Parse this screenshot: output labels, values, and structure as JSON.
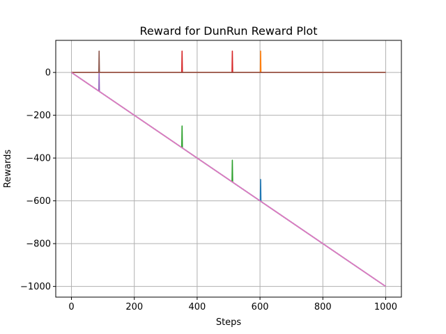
{
  "chart_data": {
    "type": "line",
    "title": "Reward for DunRun Reward Plot",
    "xlabel": "Steps",
    "ylabel": "Rewards",
    "xlim": [
      -50,
      1050
    ],
    "ylim": [
      -1050,
      150
    ],
    "xticks": [
      0,
      200,
      400,
      600,
      800,
      1000
    ],
    "yticks": [
      0,
      -200,
      -400,
      -600,
      -800,
      -1000
    ],
    "xtick_labels": [
      "0",
      "200",
      "400",
      "600",
      "800",
      "1000"
    ],
    "ytick_labels": [
      "0",
      "−200",
      "−400",
      "−600",
      "−800",
      "−1000"
    ],
    "grid": true,
    "legend": "none",
    "series": [
      {
        "color": "#1f77b4",
        "x": [
          0,
          601,
          602,
          603,
          1000
        ],
        "y": [
          0,
          -601,
          -500,
          -603,
          -1000
        ]
      },
      {
        "color": "#ff7f0e",
        "x": [
          0,
          601,
          602,
          603,
          1000
        ],
        "y": [
          0,
          0,
          100,
          0,
          0
        ]
      },
      {
        "color": "#2ca02c",
        "x": [
          0,
          351,
          352,
          353,
          511,
          512,
          513,
          1000
        ],
        "y": [
          0,
          -351,
          -250,
          -353,
          -511,
          -410,
          -513,
          -1000
        ]
      },
      {
        "color": "#d62728",
        "x": [
          0,
          351,
          352,
          353,
          511,
          512,
          513,
          1000
        ],
        "y": [
          0,
          0,
          100,
          0,
          0,
          100,
          0,
          0
        ]
      },
      {
        "color": "#9467bd",
        "x": [
          0,
          87,
          88,
          89,
          1000
        ],
        "y": [
          0,
          -87,
          0,
          -89,
          -1000
        ]
      },
      {
        "color": "#8c564b",
        "x": [
          0,
          87,
          88,
          89,
          1000
        ],
        "y": [
          0,
          0,
          100,
          0,
          0
        ]
      },
      {
        "color": "#e377c2",
        "x": [
          0,
          1000
        ],
        "y": [
          0,
          -1000
        ]
      }
    ]
  }
}
